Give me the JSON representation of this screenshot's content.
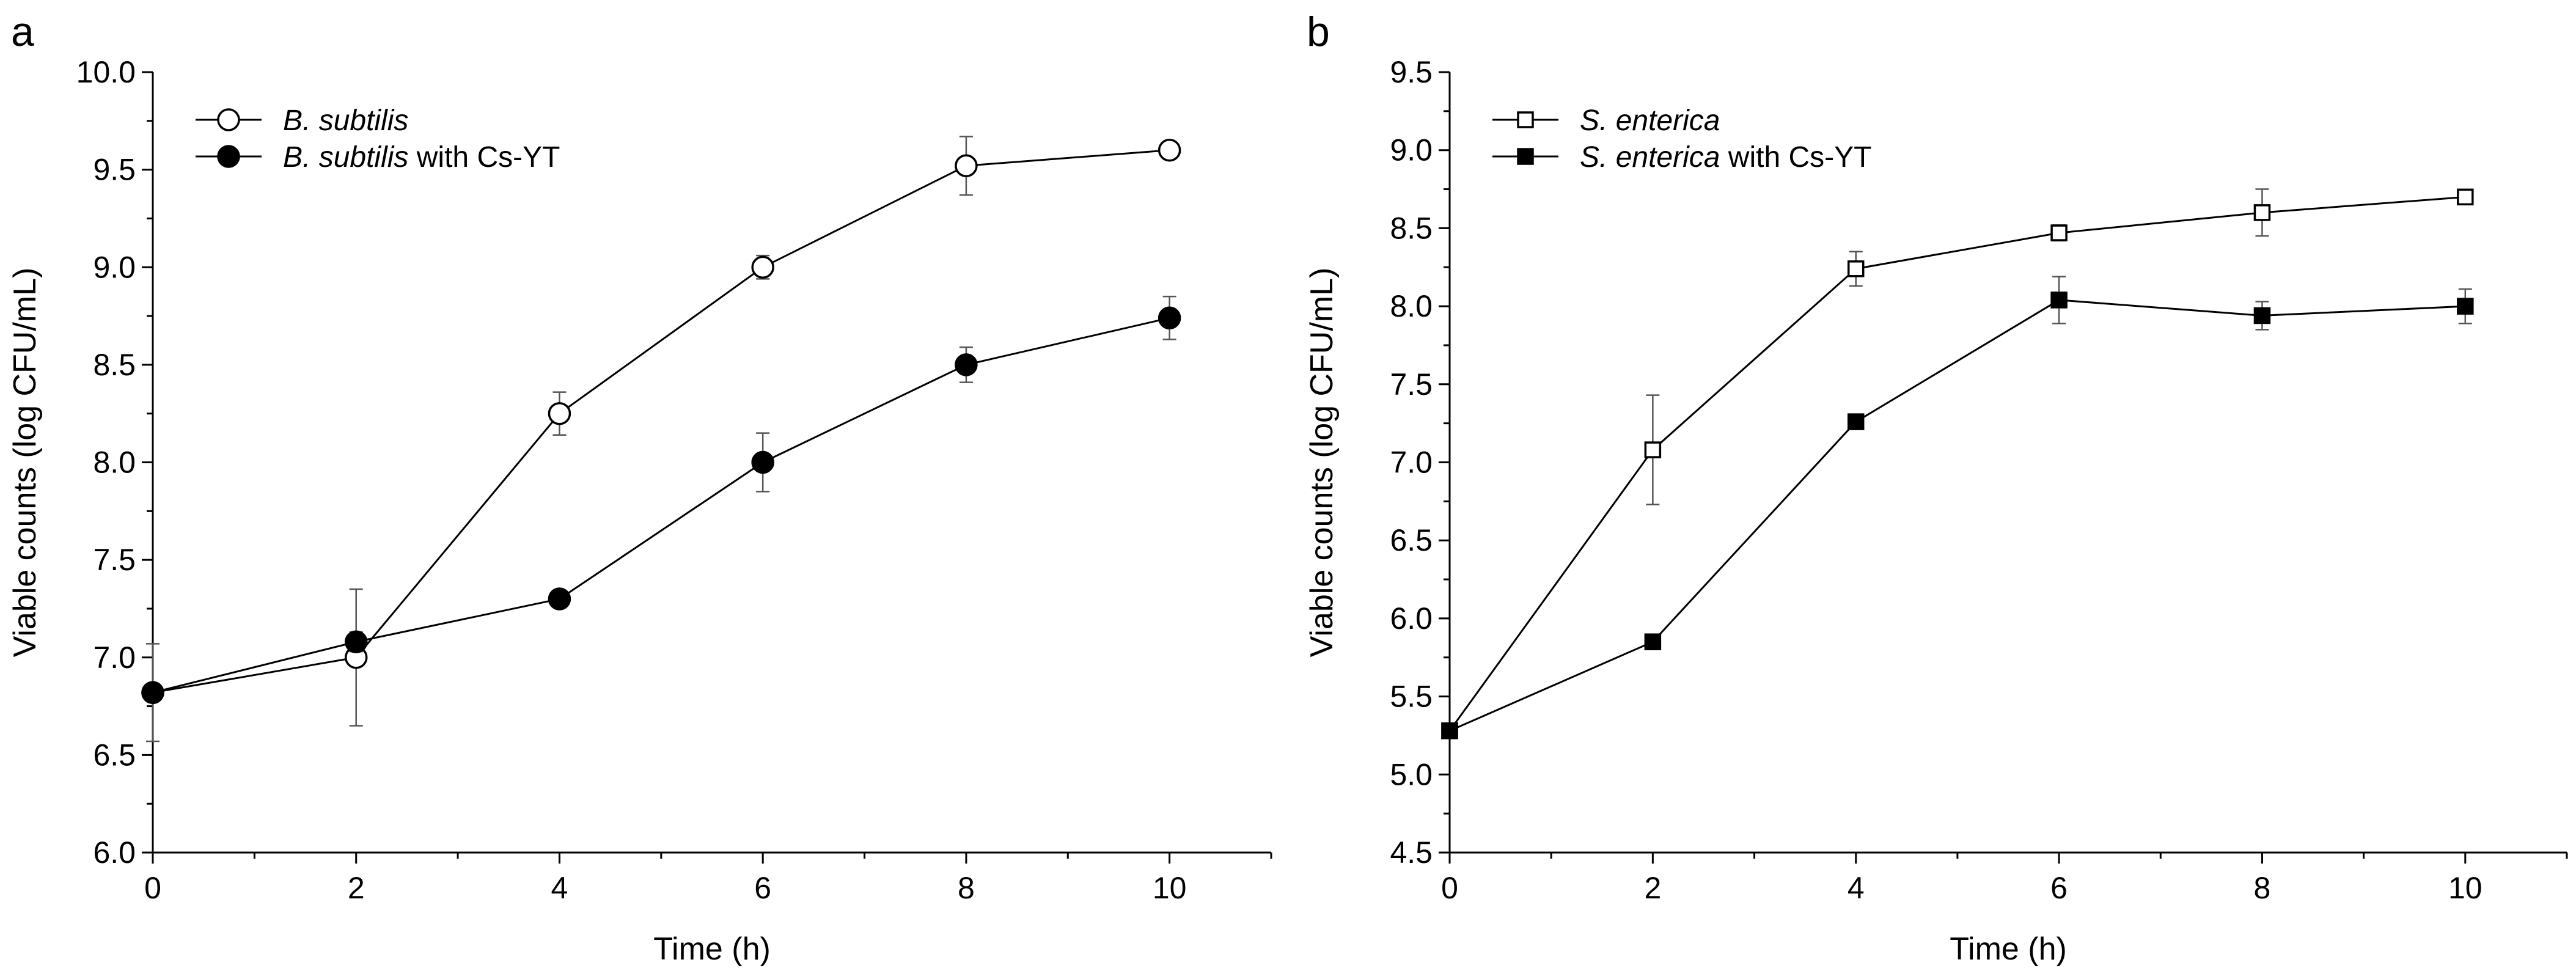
{
  "chart_data": [
    {
      "panel_label": "a",
      "type": "line",
      "xlabel": "Time (h)",
      "ylabel": "Viable counts (log CFU/mL)",
      "xlim": [
        0,
        11
      ],
      "ylim": [
        6.0,
        10.0
      ],
      "xticks": [
        0,
        2,
        4,
        6,
        8,
        10
      ],
      "xtick_labels": [
        "0",
        "2",
        "4",
        "6",
        "8",
        "10"
      ],
      "yticks": [
        6.0,
        6.5,
        7.0,
        7.5,
        8.0,
        8.5,
        9.0,
        9.5,
        10.0
      ],
      "ytick_labels": [
        "6.0",
        "6.5",
        "7.0",
        "7.5",
        "8.0",
        "8.5",
        "9.0",
        "9.5",
        "10.0"
      ],
      "grid": false,
      "legend_position": "top-left",
      "x": [
        0,
        2,
        4,
        6,
        8,
        10
      ],
      "series": [
        {
          "name_italic": "B. subtilis",
          "name_suffix": "",
          "marker": "circle-open",
          "values": [
            6.82,
            7.0,
            8.25,
            9.0,
            9.52,
            9.6
          ],
          "errors": [
            0.25,
            0.35,
            0.11,
            0.06,
            0.15,
            0.03
          ]
        },
        {
          "name_italic": "B. subtilis",
          "name_suffix": " with Cs-YT",
          "marker": "circle-filled",
          "values": [
            6.82,
            7.08,
            7.3,
            8.0,
            8.5,
            8.74
          ],
          "errors": [
            0.03,
            0.05,
            0.04,
            0.15,
            0.09,
            0.11
          ]
        }
      ]
    },
    {
      "panel_label": "b",
      "type": "line",
      "xlabel": "Time (h)",
      "ylabel": "Viable counts (log CFU/mL)",
      "xlim": [
        0,
        11
      ],
      "ylim": [
        4.5,
        9.5
      ],
      "xticks": [
        0,
        2,
        4,
        6,
        8,
        10
      ],
      "xtick_labels": [
        "0",
        "2",
        "4",
        "6",
        "8",
        "10"
      ],
      "yticks": [
        4.5,
        5.0,
        5.5,
        6.0,
        6.5,
        7.0,
        7.5,
        8.0,
        8.5,
        9.0,
        9.5
      ],
      "ytick_labels": [
        "4.5",
        "5.0",
        "5.5",
        "6.0",
        "6.5",
        "7.0",
        "7.5",
        "8.0",
        "8.5",
        "9.0",
        "9.5"
      ],
      "grid": false,
      "legend_position": "top-left",
      "x": [
        0,
        2,
        4,
        6,
        8,
        10
      ],
      "series": [
        {
          "name_italic": "S. enterica",
          "name_suffix": "",
          "marker": "square-open",
          "values": [
            5.28,
            7.08,
            8.24,
            8.47,
            8.6,
            8.7
          ],
          "errors": [
            0.03,
            0.35,
            0.11,
            0.05,
            0.15,
            0.04
          ]
        },
        {
          "name_italic": "S. enterica",
          "name_suffix": " with Cs-YT",
          "marker": "square-filled",
          "values": [
            5.28,
            5.85,
            7.26,
            8.04,
            7.94,
            8.0
          ],
          "errors": [
            0.03,
            0.04,
            0.03,
            0.15,
            0.09,
            0.11
          ]
        }
      ]
    }
  ]
}
